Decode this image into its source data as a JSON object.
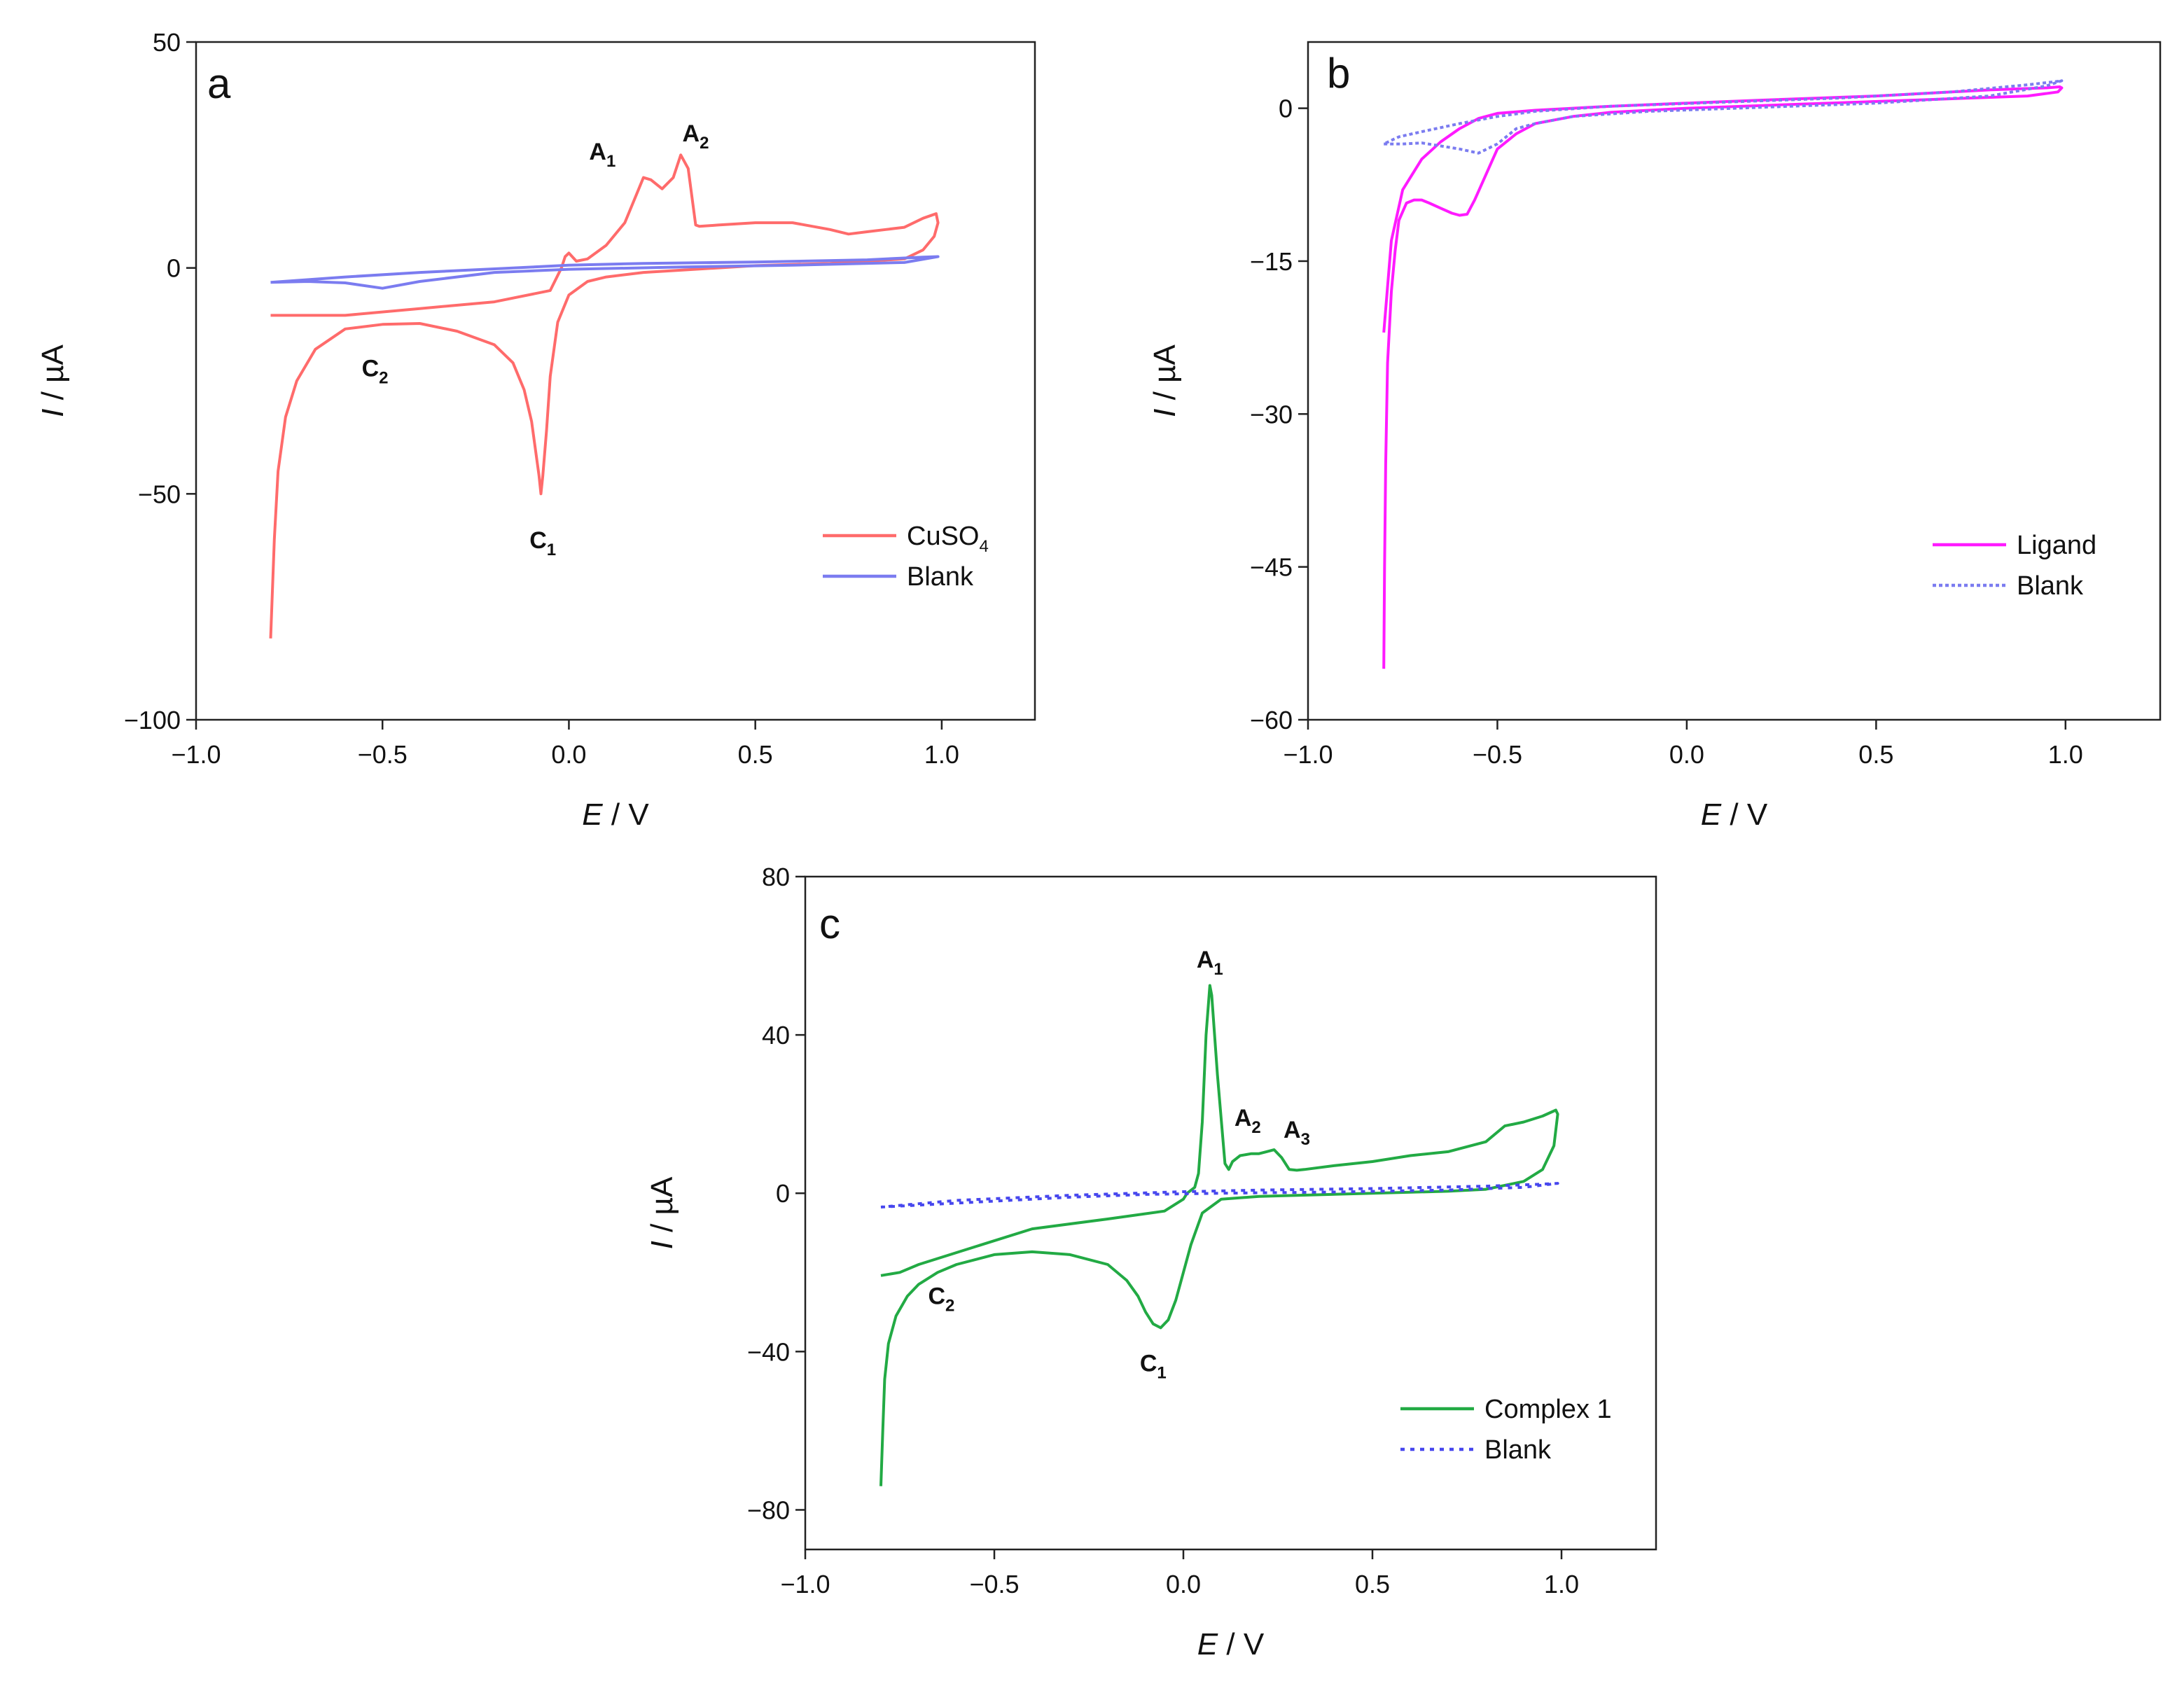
{
  "chart_data": [
    {
      "id": "a",
      "type": "line",
      "panel_label": "a",
      "xlabel_sym": "E",
      "xlabel_unit": " / V",
      "ylabel_sym": "I",
      "ylabel_unit": " / µA",
      "xlim": [
        -1.0,
        1.25
      ],
      "ylim": [
        -100,
        50
      ],
      "xticks": [
        -1.0,
        -0.5,
        0.0,
        0.5,
        1.0
      ],
      "xtick_labels": [
        "−1.0",
        "−0.5",
        "0.0",
        "0.5",
        "1.0"
      ],
      "yticks": [
        -100,
        -50,
        0,
        50
      ],
      "ytick_labels": [
        "−100",
        "−50",
        "0",
        "50"
      ],
      "series": [
        {
          "name": "CuSO4",
          "legend_main": "CuSO",
          "legend_sub": "4",
          "color": "#ff6b6b",
          "dash": "",
          "x": [
            -0.8,
            -0.79,
            -0.78,
            -0.76,
            -0.73,
            -0.68,
            -0.6,
            -0.5,
            -0.4,
            -0.3,
            -0.2,
            -0.15,
            -0.12,
            -0.1,
            -0.09,
            -0.08,
            -0.075,
            -0.07,
            -0.06,
            -0.05,
            -0.03,
            0.0,
            0.05,
            0.1,
            0.2,
            0.3,
            0.5,
            0.7,
            0.9,
            0.95,
            0.98,
            0.99,
            0.985,
            0.95,
            0.9,
            0.85,
            0.8,
            0.75,
            0.7,
            0.6,
            0.5,
            0.4,
            0.35,
            0.34,
            0.32,
            0.3,
            0.28,
            0.25,
            0.22,
            0.2,
            0.18,
            0.15,
            0.1,
            0.05,
            0.02,
            0.0,
            -0.01,
            -0.02,
            -0.05,
            -0.2,
            -0.4,
            -0.6,
            -0.7,
            -0.8
          ],
          "y": [
            -82,
            -60,
            -45,
            -33,
            -25,
            -18,
            -13.5,
            -12.5,
            -12.3,
            -14,
            -17,
            -21,
            -27,
            -34,
            -40,
            -46,
            -50,
            -46,
            -36,
            -24,
            -12,
            -6,
            -3,
            -2,
            -1,
            -0.5,
            0.5,
            1,
            2,
            4,
            7,
            10,
            12,
            11,
            9,
            8.5,
            8,
            7.5,
            8.5,
            10,
            10,
            9.5,
            9.2,
            9.5,
            22,
            25,
            20,
            17.5,
            19.5,
            20,
            16,
            10,
            5,
            2,
            1.5,
            3.3,
            2.5,
            0,
            -5,
            -7.5,
            -9,
            -10.5,
            -10.5,
            -10.5
          ]
        },
        {
          "name": "Blank",
          "legend_main": "Blank",
          "legend_sub": "",
          "color": "#7b7cf0",
          "dash": "",
          "x": [
            -0.8,
            -0.7,
            -0.6,
            -0.5,
            -0.4,
            -0.2,
            0.0,
            0.3,
            0.6,
            0.9,
            0.99,
            0.95,
            0.8,
            0.5,
            0.2,
            0.0,
            -0.2,
            -0.4,
            -0.6,
            -0.8
          ],
          "y": [
            -3.2,
            -3,
            -3.3,
            -4.5,
            -3,
            -1,
            -0.3,
            0.2,
            0.6,
            1.2,
            2.5,
            2.4,
            1.8,
            1.3,
            1.0,
            0.6,
            -0.2,
            -1,
            -2,
            -3.2
          ]
        }
      ],
      "annotations": [
        {
          "main": "A",
          "sub": "1",
          "x": 0.09,
          "y": 24
        },
        {
          "main": "A",
          "sub": "2",
          "x": 0.34,
          "y": 28
        },
        {
          "main": "C",
          "sub": "2",
          "x": -0.52,
          "y": -24
        },
        {
          "main": "C",
          "sub": "1",
          "x": -0.07,
          "y": -62
        }
      ]
    },
    {
      "id": "b",
      "type": "line",
      "panel_label": "b",
      "xlabel_sym": "E",
      "xlabel_unit": " / V",
      "ylabel_sym": "I",
      "ylabel_unit": " / µA",
      "xlim": [
        -1.0,
        1.25
      ],
      "ylim": [
        -60,
        6.5
      ],
      "xticks": [
        -1.0,
        -0.5,
        0.0,
        0.5,
        1.0
      ],
      "xtick_labels": [
        "−1.0",
        "−0.5",
        "0.0",
        "0.5",
        "1.0"
      ],
      "yticks": [
        -60,
        -45,
        -30,
        -15,
        0
      ],
      "ytick_labels": [
        "−60",
        "−45",
        "−30",
        "−15",
        "0"
      ],
      "series": [
        {
          "name": "Ligand",
          "legend_main": "Ligand",
          "legend_sub": "",
          "color": "#ff1aff",
          "dash": "",
          "x": [
            -0.8,
            -0.798,
            -0.795,
            -0.79,
            -0.78,
            -0.77,
            -0.76,
            -0.74,
            -0.72,
            -0.7,
            -0.68,
            -0.65,
            -0.62,
            -0.6,
            -0.58,
            -0.56,
            -0.53,
            -0.5,
            -0.45,
            -0.4,
            -0.3,
            -0.2,
            0.0,
            0.3,
            0.6,
            0.9,
            0.98,
            0.99,
            0.985,
            0.95,
            0.8,
            0.5,
            0.2,
            0.0,
            -0.2,
            -0.4,
            -0.5,
            -0.55,
            -0.6,
            -0.65,
            -0.7,
            -0.75,
            -0.78,
            -0.8
          ],
          "y": [
            -55,
            -45,
            -35,
            -25,
            -18,
            -14,
            -11,
            -9.3,
            -9,
            -9,
            -9.3,
            -9.8,
            -10.3,
            -10.5,
            -10.4,
            -9,
            -6.5,
            -4,
            -2.5,
            -1.5,
            -0.8,
            -0.4,
            0,
            0.4,
            0.8,
            1.2,
            1.6,
            2,
            2.1,
            2,
            1.8,
            1.2,
            0.8,
            0.5,
            0.2,
            -0.2,
            -0.5,
            -1,
            -2,
            -3.3,
            -5,
            -8,
            -13,
            -22
          ]
        },
        {
          "name": "Blank",
          "legend_main": "Blank",
          "legend_sub": "",
          "color": "#7b7cf0",
          "dash": "5 4",
          "x": [
            -0.8,
            -0.75,
            -0.7,
            -0.6,
            -0.55,
            -0.5,
            -0.45,
            -0.4,
            -0.3,
            -0.1,
            0.2,
            0.5,
            0.8,
            0.95,
            0.99,
            0.97,
            0.9,
            0.7,
            0.4,
            0.1,
            -0.2,
            -0.4,
            -0.5,
            -0.6,
            -0.7,
            -0.76,
            -0.8
          ],
          "y": [
            -3.5,
            -3.5,
            -3.4,
            -4,
            -4.4,
            -3.5,
            -2,
            -1.5,
            -0.8,
            -0.3,
            0.1,
            0.5,
            1.2,
            2.2,
            2.7,
            2.6,
            2.3,
            1.6,
            1.0,
            0.6,
            0.2,
            -0.3,
            -0.8,
            -1.5,
            -2.3,
            -2.8,
            -3.5
          ]
        }
      ],
      "annotations": []
    },
    {
      "id": "c",
      "type": "line",
      "panel_label": "c",
      "xlabel_sym": "E",
      "xlabel_unit": " / V",
      "ylabel_sym": "I",
      "ylabel_unit": " / µA",
      "xlim": [
        -1.0,
        1.25
      ],
      "ylim": [
        -90,
        80
      ],
      "xticks": [
        -1.0,
        -0.5,
        0.0,
        0.5,
        1.0
      ],
      "xtick_labels": [
        "−1.0",
        "−0.5",
        "0.0",
        "0.5",
        "1.0"
      ],
      "yticks": [
        -80,
        -40,
        0,
        40,
        80
      ],
      "ytick_labels": [
        "−80",
        "−40",
        "0",
        "40",
        "80"
      ],
      "series": [
        {
          "name": "Complex 1",
          "legend_main": "Complex 1",
          "legend_sub": "",
          "color": "#22aa44",
          "dash": "",
          "x": [
            -0.8,
            -0.795,
            -0.79,
            -0.78,
            -0.76,
            -0.73,
            -0.7,
            -0.65,
            -0.6,
            -0.5,
            -0.4,
            -0.3,
            -0.2,
            -0.15,
            -0.12,
            -0.1,
            -0.08,
            -0.06,
            -0.04,
            -0.02,
            0.0,
            0.02,
            0.05,
            0.1,
            0.2,
            0.5,
            0.7,
            0.8,
            0.9,
            0.95,
            0.98,
            0.99,
            0.985,
            0.95,
            0.9,
            0.85,
            0.8,
            0.7,
            0.6,
            0.5,
            0.4,
            0.32,
            0.3,
            0.28,
            0.26,
            0.24,
            0.22,
            0.2,
            0.18,
            0.15,
            0.13,
            0.12,
            0.11,
            0.09,
            0.075,
            0.07,
            0.06,
            0.05,
            0.04,
            0.03,
            0.01,
            0.0,
            -0.05,
            -0.2,
            -0.4,
            -0.6,
            -0.7,
            -0.75,
            -0.8
          ],
          "y": [
            -74,
            -60,
            -47,
            -38,
            -31,
            -26,
            -23,
            -20,
            -18,
            -15.5,
            -14.8,
            -15.5,
            -18,
            -22,
            -26,
            -30,
            -33,
            -34,
            -32,
            -27,
            -20,
            -13,
            -5,
            -1.5,
            -0.8,
            0,
            0.5,
            1,
            3,
            6,
            12,
            20,
            21,
            19.5,
            18,
            17,
            13,
            10.5,
            9.5,
            8,
            7,
            6,
            5.8,
            6,
            9,
            11,
            10.5,
            10,
            10,
            9.5,
            8,
            6,
            7.5,
            30,
            50,
            52.5,
            40,
            18,
            5,
            1.5,
            0,
            -1.5,
            -4.5,
            -6.5,
            -9,
            -15,
            -18,
            -20,
            -20.8
          ]
        },
        {
          "name": "Blank",
          "legend_main": "Blank",
          "legend_sub": "",
          "color": "#4747ee",
          "dash": "6 8",
          "x": [
            -0.8,
            -0.7,
            -0.5,
            -0.3,
            -0.1,
            0.1,
            0.4,
            0.7,
            0.9,
            0.99,
            0.95,
            0.8,
            0.5,
            0.2,
            0.0,
            -0.3,
            -0.6,
            -0.8
          ],
          "y": [
            -3.5,
            -3,
            -2,
            -1,
            -0.3,
            0,
            0.3,
            0.8,
            1.5,
            2.5,
            2.3,
            1.8,
            1.2,
            0.8,
            0.4,
            -0.5,
            -1.8,
            -3.5
          ]
        }
      ],
      "annotations": [
        {
          "main": "A",
          "sub": "1",
          "x": 0.07,
          "y": 57
        },
        {
          "main": "A",
          "sub": "2",
          "x": 0.17,
          "y": 17
        },
        {
          "main": "A",
          "sub": "3",
          "x": 0.3,
          "y": 14
        },
        {
          "main": "C",
          "sub": "2",
          "x": -0.64,
          "y": -28
        },
        {
          "main": "C",
          "sub": "1",
          "x": -0.08,
          "y": -45
        }
      ]
    }
  ]
}
